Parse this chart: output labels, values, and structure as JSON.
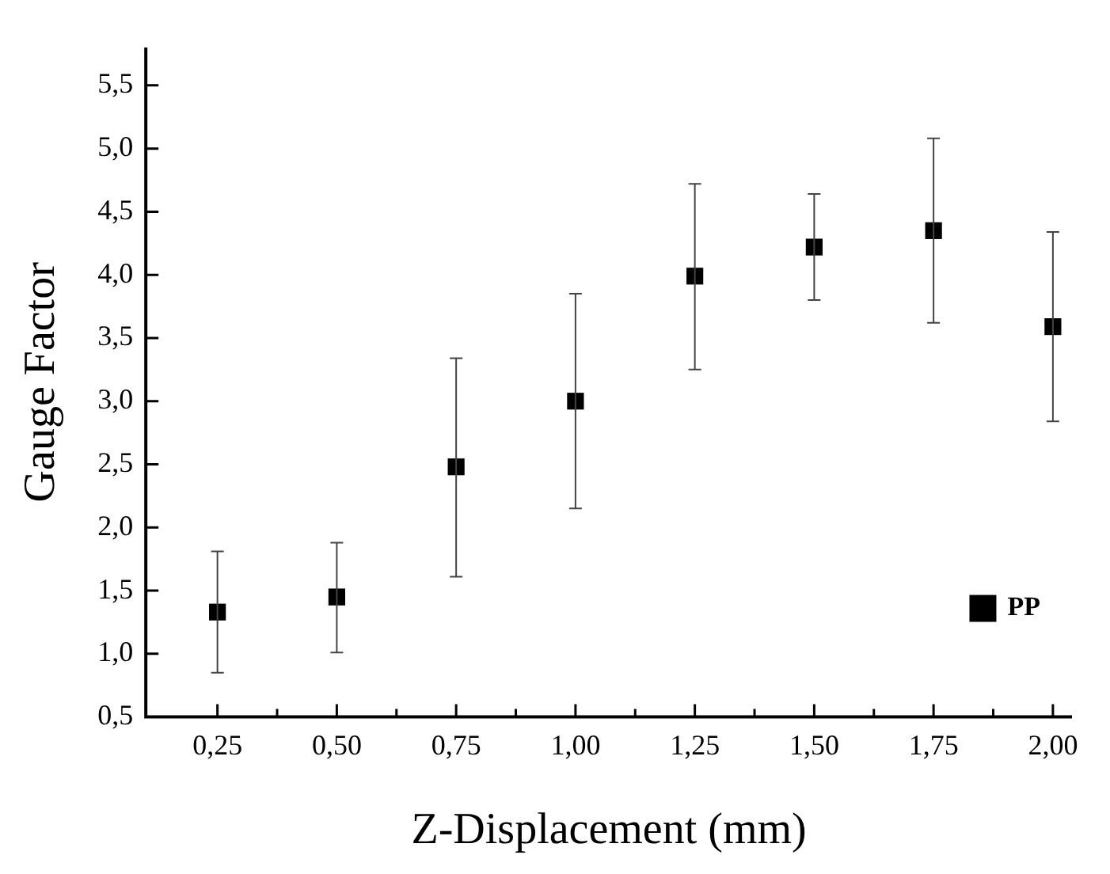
{
  "chart_data": {
    "type": "scatter",
    "xlabel": "Z-Displacement (mm)",
    "ylabel": "Gauge Factor",
    "x": [
      0.25,
      0.5,
      0.75,
      1.0,
      1.25,
      1.5,
      1.75,
      2.0
    ],
    "series": [
      {
        "name": "PP",
        "color": "#000000",
        "values": [
          1.33,
          1.45,
          2.48,
          3.0,
          3.99,
          4.22,
          4.35,
          3.59
        ],
        "errors": [
          [
            0.85,
            1.81
          ],
          [
            1.01,
            1.88
          ],
          [
            1.61,
            3.34
          ],
          [
            2.15,
            3.85
          ],
          [
            3.25,
            4.72
          ],
          [
            3.8,
            4.64
          ],
          [
            3.62,
            5.08
          ],
          [
            2.84,
            4.34
          ]
        ]
      }
    ],
    "marker": "square",
    "legend": "bottom right",
    "grid": false,
    "xlim": [
      0.1,
      2.04
    ],
    "ylim": [
      0.5,
      5.8
    ],
    "xticks": [
      {
        "value": 0.25,
        "label": "0,25"
      },
      {
        "value": 0.375,
        "label": null
      },
      {
        "value": 0.5,
        "label": "0,50"
      },
      {
        "value": 0.625,
        "label": null
      },
      {
        "value": 0.75,
        "label": "0,75"
      },
      {
        "value": 0.875,
        "label": null
      },
      {
        "value": 1.0,
        "label": "1,00"
      },
      {
        "value": 1.125,
        "label": null
      },
      {
        "value": 1.25,
        "label": "1,25"
      },
      {
        "value": 1.375,
        "label": null
      },
      {
        "value": 1.5,
        "label": "1,50"
      },
      {
        "value": 1.625,
        "label": null
      },
      {
        "value": 1.75,
        "label": "1,75"
      },
      {
        "value": 1.875,
        "label": null
      },
      {
        "value": 2.0,
        "label": "2,00"
      }
    ],
    "yticks": [
      {
        "value": 0.5,
        "label": "0,5"
      },
      {
        "value": 1.0,
        "label": "1,0"
      },
      {
        "value": 1.5,
        "label": "1,5"
      },
      {
        "value": 2.0,
        "label": "2,0"
      },
      {
        "value": 2.5,
        "label": "2,5"
      },
      {
        "value": 3.0,
        "label": "3,0"
      },
      {
        "value": 3.5,
        "label": "3,5"
      },
      {
        "value": 4.0,
        "label": "4,0"
      },
      {
        "value": 4.5,
        "label": "4,5"
      },
      {
        "value": 5.0,
        "label": "5,0"
      },
      {
        "value": 5.5,
        "label": "5,5"
      }
    ]
  }
}
